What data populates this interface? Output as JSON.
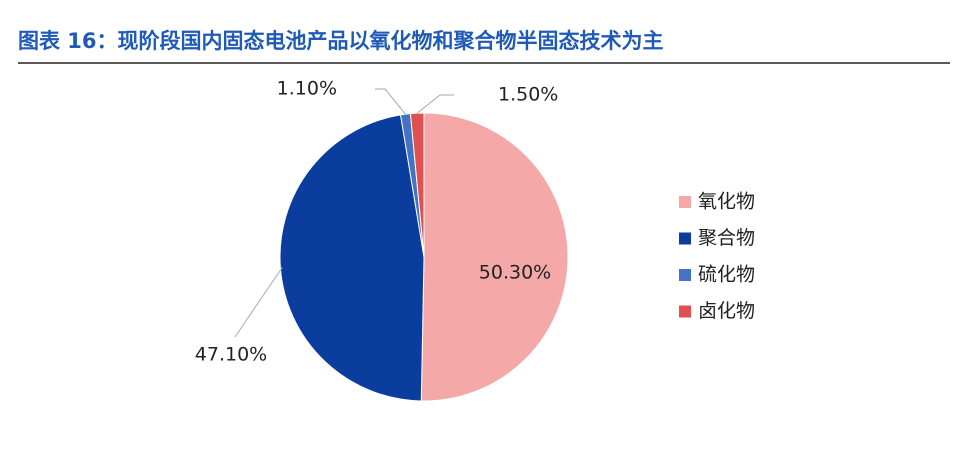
{
  "chart_data": {
    "type": "pie",
    "title": "图表 16：现阶段国内固态电池产品以氧化物和聚合物半固态技术为主",
    "categories": [
      "氧化物",
      "聚合物",
      "硫化物",
      "卤化物"
    ],
    "values": [
      50.3,
      47.1,
      1.1,
      1.5
    ],
    "value_labels": [
      "50.30%",
      "47.10%",
      "1.10%",
      "1.50%"
    ],
    "colors": [
      "#f4a9a8",
      "#0a3d9e",
      "#4472c4",
      "#df5050"
    ],
    "legend": "right"
  }
}
